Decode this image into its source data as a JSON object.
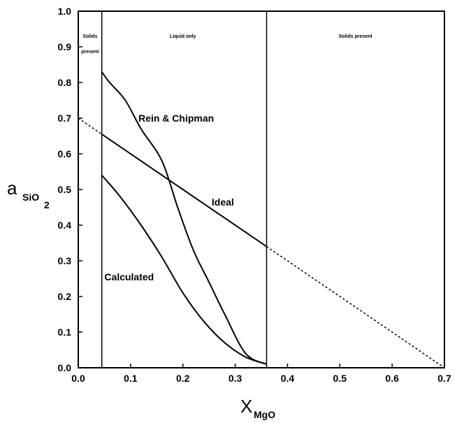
{
  "chart_data": {
    "type": "line",
    "title": "",
    "xlabel": {
      "main": "X",
      "sub": "MgO"
    },
    "ylabel": {
      "main": "a",
      "sub": "SiO",
      "sub2": "2"
    },
    "xlim": [
      0.0,
      0.7
    ],
    "ylim": [
      0.0,
      1.0
    ],
    "xticks": [
      "0.0",
      "0.1",
      "0.2",
      "0.3",
      "0.4",
      "0.5",
      "0.6",
      "0.7"
    ],
    "yticks": [
      "0.0",
      "0.1",
      "0.2",
      "0.3",
      "0.4",
      "0.5",
      "0.6",
      "0.7",
      "0.8",
      "0.9",
      "1.0"
    ],
    "grid": false,
    "boundaries": [
      0.045,
      0.36
    ],
    "regions": [
      {
        "line1": "Solids",
        "line2": "present",
        "x": 0.0225
      },
      {
        "line1": "Liquid only",
        "line2": "",
        "x": 0.2
      },
      {
        "line1": "Solids present",
        "line2": "",
        "x": 0.53
      }
    ],
    "series": [
      {
        "name": "Rein & Chipman",
        "label_at": [
          0.115,
          0.69
        ],
        "x": [
          0.045,
          0.06,
          0.09,
          0.12,
          0.16,
          0.19,
          0.22,
          0.25,
          0.28,
          0.32,
          0.36
        ],
        "y": [
          0.83,
          0.8,
          0.75,
          0.67,
          0.58,
          0.45,
          0.33,
          0.24,
          0.15,
          0.04,
          0.01
        ]
      },
      {
        "name": "Ideal",
        "label_at": [
          0.255,
          0.455
        ],
        "x": [
          0.045,
          0.36
        ],
        "y": [
          0.655,
          0.34
        ]
      },
      {
        "name": "Calculated",
        "label_at": [
          0.05,
          0.245
        ],
        "x": [
          0.045,
          0.08,
          0.12,
          0.16,
          0.2,
          0.24,
          0.28,
          0.32,
          0.36
        ],
        "y": [
          0.54,
          0.48,
          0.4,
          0.31,
          0.21,
          0.13,
          0.07,
          0.03,
          0.01
        ]
      }
    ],
    "dotted_extensions": [
      {
        "x": [
          0.0,
          0.045
        ],
        "y": [
          0.7,
          0.655
        ]
      },
      {
        "x": [
          0.36,
          0.7
        ],
        "y": [
          0.34,
          0.0
        ]
      }
    ]
  }
}
